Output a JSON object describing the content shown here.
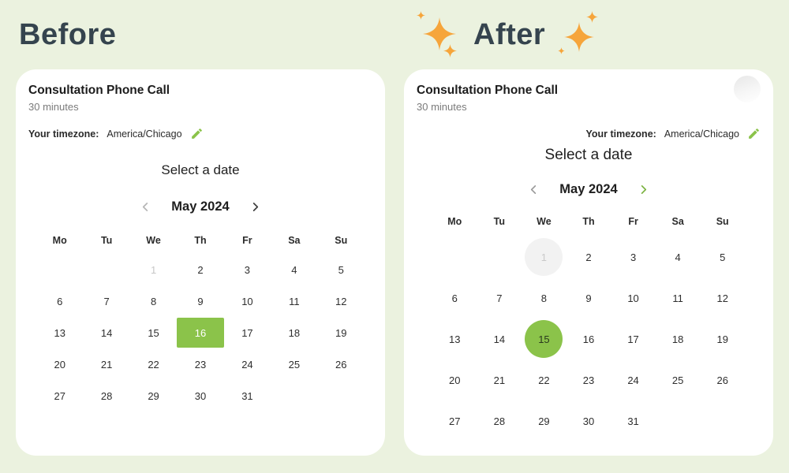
{
  "header": {
    "before_label": "Before",
    "after_label": "After"
  },
  "colors": {
    "background": "#ebf2df",
    "card": "#ffffff",
    "heading_slate": "#35444e",
    "accent_green": "#8bc34a",
    "chevron_green": "#7cb342",
    "sparkle_orange": "#f6a53b",
    "muted_text": "#7b7b7b",
    "disabled_text": "#c7c7c7",
    "disabled_circle_bg": "#f2f2f2",
    "selected_square_text": "#ffffff"
  },
  "icons": {
    "edit": "pencil-icon",
    "prev": "chevron-left-icon",
    "next": "chevron-right-icon",
    "decoration": "sparkle-icon"
  },
  "before": {
    "event": {
      "title": "Consultation Phone Call",
      "duration": "30 minutes"
    },
    "timezone": {
      "label": "Your timezone:",
      "value": "America/Chicago"
    },
    "calendar": {
      "prompt": "Select a date",
      "month": "May 2024",
      "selected_day": "16",
      "weekdays": [
        "Mo",
        "Tu",
        "We",
        "Th",
        "Fr",
        "Sa",
        "Su"
      ],
      "rows": [
        [
          {
            "d": ""
          },
          {
            "d": ""
          },
          {
            "d": "1",
            "state": "disabled"
          },
          {
            "d": "2"
          },
          {
            "d": "3"
          },
          {
            "d": "4"
          },
          {
            "d": "5"
          }
        ],
        [
          {
            "d": "6"
          },
          {
            "d": "7"
          },
          {
            "d": "8"
          },
          {
            "d": "9"
          },
          {
            "d": "10"
          },
          {
            "d": "11"
          },
          {
            "d": "12"
          }
        ],
        [
          {
            "d": "13"
          },
          {
            "d": "14"
          },
          {
            "d": "15"
          },
          {
            "d": "16",
            "state": "selected"
          },
          {
            "d": "17"
          },
          {
            "d": "18"
          },
          {
            "d": "19"
          }
        ],
        [
          {
            "d": "20"
          },
          {
            "d": "21"
          },
          {
            "d": "22"
          },
          {
            "d": "23"
          },
          {
            "d": "24"
          },
          {
            "d": "25"
          },
          {
            "d": "26"
          }
        ],
        [
          {
            "d": "27"
          },
          {
            "d": "28"
          },
          {
            "d": "29"
          },
          {
            "d": "30"
          },
          {
            "d": "31"
          },
          {
            "d": ""
          },
          {
            "d": ""
          }
        ]
      ]
    }
  },
  "after": {
    "event": {
      "title": "Consultation Phone Call",
      "duration": "30 minutes"
    },
    "timezone": {
      "label": "Your timezone:",
      "value": "America/Chicago"
    },
    "calendar": {
      "prompt": "Select a date",
      "month": "May 2024",
      "selected_day": "15",
      "weekdays": [
        "Mo",
        "Tu",
        "We",
        "Th",
        "Fr",
        "Sa",
        "Su"
      ],
      "rows": [
        [
          {
            "d": ""
          },
          {
            "d": ""
          },
          {
            "d": "1",
            "state": "disabled"
          },
          {
            "d": "2"
          },
          {
            "d": "3"
          },
          {
            "d": "4"
          },
          {
            "d": "5"
          }
        ],
        [
          {
            "d": "6"
          },
          {
            "d": "7"
          },
          {
            "d": "8"
          },
          {
            "d": "9"
          },
          {
            "d": "10"
          },
          {
            "d": "11"
          },
          {
            "d": "12"
          }
        ],
        [
          {
            "d": "13"
          },
          {
            "d": "14"
          },
          {
            "d": "15",
            "state": "selected"
          },
          {
            "d": "16"
          },
          {
            "d": "17"
          },
          {
            "d": "18"
          },
          {
            "d": "19"
          }
        ],
        [
          {
            "d": "20"
          },
          {
            "d": "21"
          },
          {
            "d": "22"
          },
          {
            "d": "23"
          },
          {
            "d": "24"
          },
          {
            "d": "25"
          },
          {
            "d": "26"
          }
        ],
        [
          {
            "d": "27"
          },
          {
            "d": "28"
          },
          {
            "d": "29"
          },
          {
            "d": "30"
          },
          {
            "d": "31"
          },
          {
            "d": ""
          },
          {
            "d": ""
          }
        ]
      ]
    }
  }
}
